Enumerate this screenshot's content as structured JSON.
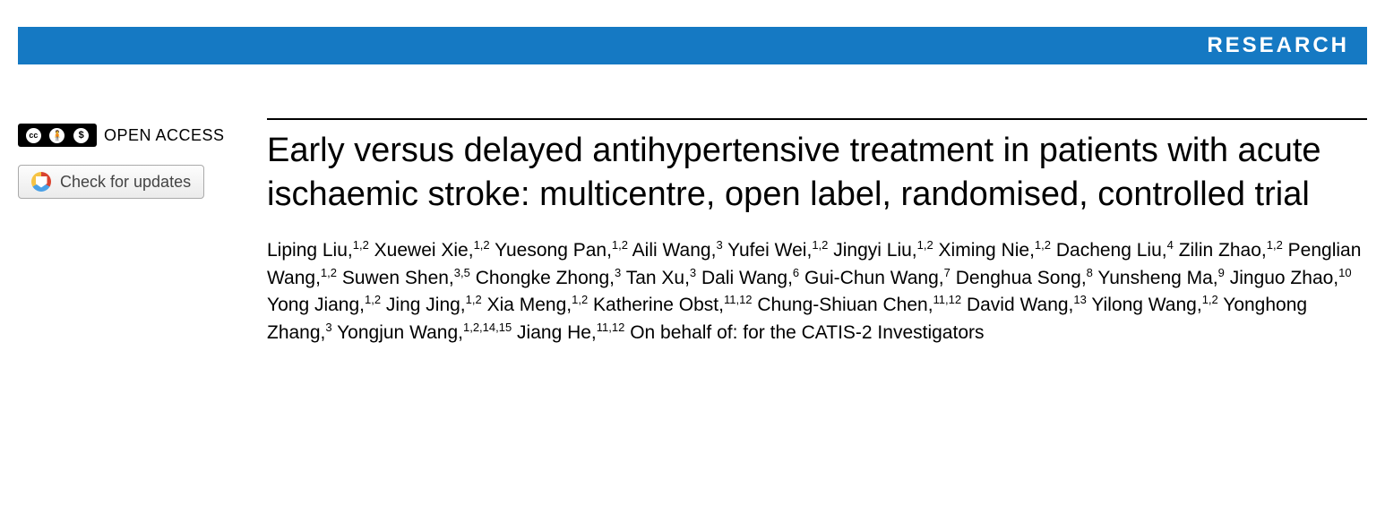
{
  "banner": {
    "label": "RESEARCH",
    "background_color": "#1579c3",
    "text_color": "#ffffff"
  },
  "open_access": {
    "label": "OPEN ACCESS",
    "cc_parts": [
      "cc",
      "BY",
      "NC"
    ]
  },
  "updates_button": {
    "label": "Check for updates"
  },
  "article": {
    "title": "Early versus delayed antihypertensive treatment in patients with acute ischaemic stroke: multicentre, open label, randomised, controlled trial",
    "authors": [
      {
        "name": "Liping Liu",
        "affil": "1,2"
      },
      {
        "name": "Xuewei Xie",
        "affil": "1,2"
      },
      {
        "name": "Yuesong Pan",
        "affil": "1,2"
      },
      {
        "name": "Aili Wang",
        "affil": "3"
      },
      {
        "name": "Yufei Wei",
        "affil": "1,2"
      },
      {
        "name": "Jingyi Liu",
        "affil": "1,2"
      },
      {
        "name": "Ximing Nie",
        "affil": "1,2"
      },
      {
        "name": "Dacheng Liu",
        "affil": "4"
      },
      {
        "name": "Zilin Zhao",
        "affil": "1,2"
      },
      {
        "name": "Penglian Wang",
        "affil": "1,2"
      },
      {
        "name": "Suwen Shen",
        "affil": "3,5"
      },
      {
        "name": "Chongke Zhong",
        "affil": "3"
      },
      {
        "name": "Tan Xu",
        "affil": "3"
      },
      {
        "name": "Dali Wang",
        "affil": "6"
      },
      {
        "name": "Gui-Chun Wang",
        "affil": "7"
      },
      {
        "name": "Denghua Song",
        "affil": "8"
      },
      {
        "name": "Yunsheng Ma",
        "affil": "9"
      },
      {
        "name": "Jinguo Zhao",
        "affil": "10"
      },
      {
        "name": "Yong Jiang",
        "affil": "1,2"
      },
      {
        "name": "Jing Jing",
        "affil": "1,2"
      },
      {
        "name": "Xia Meng",
        "affil": "1,2"
      },
      {
        "name": "Katherine Obst",
        "affil": "11,12"
      },
      {
        "name": "Chung-Shiuan Chen",
        "affil": "11,12"
      },
      {
        "name": "David Wang",
        "affil": "13"
      },
      {
        "name": "Yilong Wang",
        "affil": "1,2"
      },
      {
        "name": "Yonghong Zhang",
        "affil": "3"
      },
      {
        "name": "Yongjun Wang",
        "affil": "1,2,14,15"
      },
      {
        "name": "Jiang He",
        "affil": "11,12"
      }
    ],
    "on_behalf": "On behalf of: for the CATIS-2 Investigators"
  },
  "colors": {
    "banner_bg": "#1579c3",
    "text": "#000000",
    "button_border": "#aaaaaa",
    "button_text": "#444444"
  }
}
